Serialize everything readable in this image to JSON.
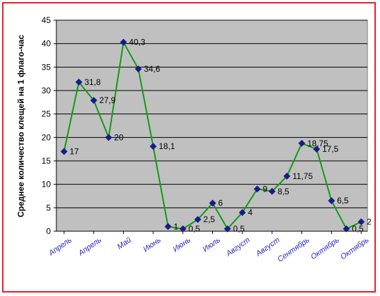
{
  "chart_data": {
    "type": "line",
    "title": "",
    "xlabel": "",
    "ylabel": "Среднее количество клещей на 1 флаго-час",
    "ylim": [
      0,
      45
    ],
    "yticks": [
      0,
      5,
      10,
      15,
      20,
      25,
      30,
      35,
      40,
      45
    ],
    "tick_labels": [
      "Апрель",
      "Апрель",
      "Май",
      "Июнь",
      "Июнь",
      "Июль",
      "Август",
      "Август",
      "Сентябрь",
      "Октябрь",
      "Октябрь"
    ],
    "grid": true,
    "legend": "none",
    "colors": {
      "plot_bg": "#c0c0c0",
      "line": "#129a12",
      "marker": "#1a1a8c",
      "tick_label": "#2626c8",
      "frame": "#e0202a"
    },
    "series": [
      {
        "values": [
          17,
          31.8,
          27.9,
          20,
          40.3,
          34.6,
          18.1,
          1,
          0.5,
          2.5,
          6,
          0.5,
          4,
          9,
          8.5,
          11.75,
          18.75,
          17.5,
          6.5,
          0.5,
          2
        ],
        "labels": [
          "17",
          "31,8",
          "27,9",
          "20",
          "40,3",
          "34,6",
          "18,1",
          "1",
          "0,5",
          "2,5",
          "6",
          "0,5",
          "4",
          "9",
          "8,5",
          "11,75",
          "18,75",
          "17,5",
          "6,5",
          "0,5",
          "2"
        ]
      }
    ]
  }
}
